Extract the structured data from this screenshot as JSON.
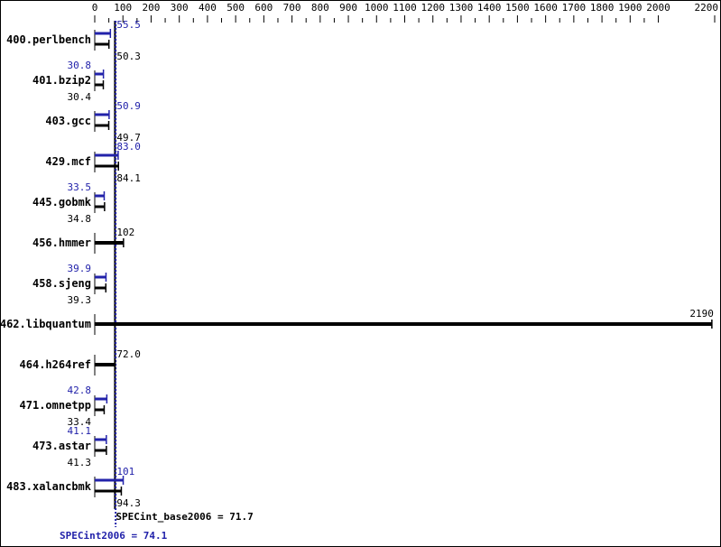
{
  "chart_data": {
    "type": "bar",
    "orientation": "horizontal",
    "xlim": [
      0,
      2200
    ],
    "x_ticks": [
      0,
      100,
      200,
      300,
      400,
      500,
      600,
      700,
      800,
      900,
      1000,
      1100,
      1200,
      1300,
      1400,
      1500,
      1600,
      1700,
      1800,
      1900,
      2000,
      2200
    ],
    "categories": [
      "400.perlbench",
      "401.bzip2",
      "403.gcc",
      "429.mcf",
      "445.gobmk",
      "456.hmmer",
      "458.sjeng",
      "462.libquantum",
      "464.h264ref",
      "471.omnetpp",
      "473.astar",
      "483.xalancbmk"
    ],
    "series": [
      {
        "name": "SPECint2006",
        "values": [
          55.5,
          30.8,
          50.9,
          83.0,
          33.5,
          null,
          39.9,
          null,
          null,
          42.8,
          41.1,
          101
        ],
        "labels": [
          "55.5",
          "30.8",
          "50.9",
          "83.0",
          "33.5",
          null,
          "39.9",
          null,
          null,
          "42.8",
          "41.1",
          "101"
        ]
      },
      {
        "name": "SPECint_base2006",
        "values": [
          50.3,
          30.4,
          49.7,
          84.1,
          34.8,
          102,
          39.3,
          2190,
          72.0,
          33.4,
          41.3,
          94.3
        ],
        "labels": [
          "50.3",
          "30.4",
          "49.7",
          "84.1",
          "34.8",
          "102",
          "39.3",
          "2190",
          "72.0",
          "33.4",
          "41.3",
          "94.3"
        ]
      }
    ],
    "summary": {
      "base_label": "SPECint_base2006 = 71.7",
      "base_value": 71.7,
      "peak_label": "SPECint2006 = 74.1",
      "peak_value": 74.1
    },
    "colors": {
      "peak": "#2222aa",
      "base": "#000000"
    }
  }
}
